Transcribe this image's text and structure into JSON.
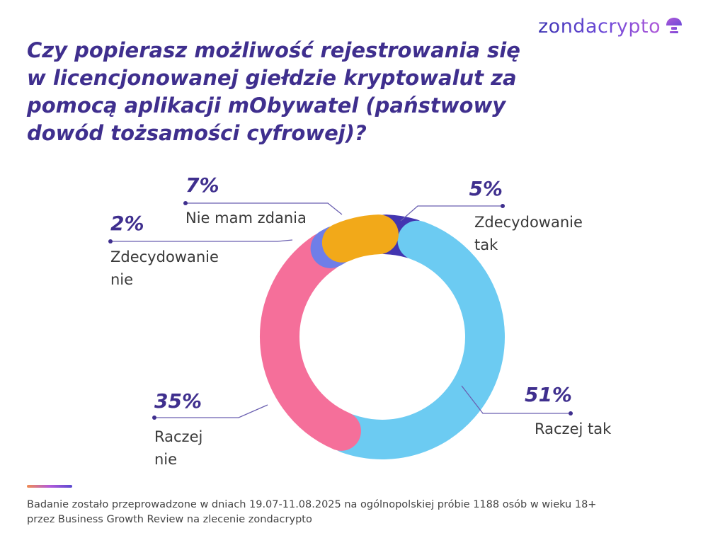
{
  "header": {
    "logo_text": "zondacrypto",
    "logo_icon": "mushroom-icon",
    "title_lines": [
      "Czy popierasz możliwość rejestrowania się",
      "w licencjonowanej giełdzie kryptowalut za",
      "pomocą aplikacji mObywatel (państwowy",
      "dowód tożsamości cyfrowej)?"
    ]
  },
  "chart_data": {
    "type": "pie",
    "variant": "donut",
    "title": "Czy popierasz możliwość rejestrowania się w licencjonowanej giełdzie kryptowalut za pomocą aplikacji mObywatel (państwowy dowód tożsamości cyfrowej)?",
    "slices": [
      {
        "label": "Zdecydowanie tak",
        "value": 5,
        "value_label": "5%",
        "color": "#4335b0"
      },
      {
        "label": "Raczej tak",
        "value": 51,
        "value_label": "51%",
        "color": "#6ccbf2"
      },
      {
        "label": "Raczej nie",
        "value": 35,
        "value_label": "35%",
        "color": "#f56f9a"
      },
      {
        "label": "Zdecydowanie nie",
        "value": 2,
        "value_label": "2%",
        "color": "#6f7ee8"
      },
      {
        "label": "Nie mam zdania",
        "value": 7,
        "value_label": "7%",
        "color": "#f2a919"
      }
    ],
    "callouts": [
      {
        "pct": "5%",
        "lines": [
          "Zdecydowanie",
          "tak"
        ]
      },
      {
        "pct": "51%",
        "lines": [
          "Raczej tak"
        ]
      },
      {
        "pct": "35%",
        "lines": [
          "Raczej",
          "nie"
        ]
      },
      {
        "pct": "2%",
        "lines": [
          "Zdecydowanie",
          "nie"
        ]
      },
      {
        "pct": "7%",
        "lines": [
          "Nie mam zdania"
        ]
      }
    ],
    "start": "top",
    "direction": "clockwise"
  },
  "footnote": {
    "lines": [
      "Badanie zostało przeprowadzone w dniach 19.07-11.08.2025 na ogólnopolskiej próbie 1188 osób w wieku 18+",
      "przez Business Growth Review na zlecenie zondacrypto"
    ]
  },
  "colors": {
    "title": "#3f2f8e",
    "connector": "#6a5fb0"
  }
}
